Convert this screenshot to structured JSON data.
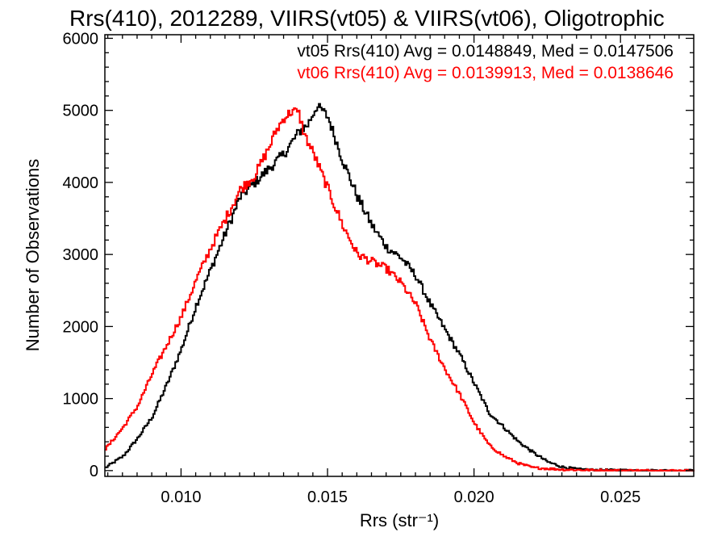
{
  "chart_data": {
    "type": "line",
    "step": true,
    "title": "Rrs(410), 2012289, VIIRS(vt05) & VIIRS(vt06), Oligotrophic",
    "xlabel": "Rrs (str⁻¹)",
    "ylabel": "Number of Observations",
    "xlim": [
      0.0074,
      0.0275
    ],
    "ylim": [
      -80,
      6050
    ],
    "x_ticks": [
      {
        "value": 0.01,
        "label": "0.010"
      },
      {
        "value": 0.015,
        "label": "0.015"
      },
      {
        "value": 0.02,
        "label": "0.020"
      },
      {
        "value": 0.025,
        "label": "0.025"
      }
    ],
    "y_ticks": [
      {
        "value": 0,
        "label": "0"
      },
      {
        "value": 1000,
        "label": "1000"
      },
      {
        "value": 2000,
        "label": "2000"
      },
      {
        "value": 3000,
        "label": "3000"
      },
      {
        "value": 4000,
        "label": "4000"
      },
      {
        "value": 5000,
        "label": "5000"
      },
      {
        "value": 6000,
        "label": "6000"
      }
    ],
    "grid": false,
    "legend_position": "top-right",
    "series": [
      {
        "name": "vt05 Rrs(410) Avg = 0.0148849, Med = 0.0147506",
        "color": "#000000",
        "x": [
          0.0074,
          0.008,
          0.0085,
          0.009,
          0.0095,
          0.01,
          0.0105,
          0.011,
          0.0115,
          0.012,
          0.0125,
          0.013,
          0.0135,
          0.014,
          0.0143,
          0.0146,
          0.0148,
          0.015,
          0.0155,
          0.016,
          0.0165,
          0.017,
          0.0175,
          0.018,
          0.0185,
          0.019,
          0.0195,
          0.02,
          0.0205,
          0.021,
          0.0215,
          0.022,
          0.0225,
          0.023,
          0.0235,
          0.024,
          0.025,
          0.026,
          0.0275
        ],
        "y": [
          40,
          200,
          450,
          750,
          1200,
          1700,
          2300,
          2800,
          3300,
          3800,
          4000,
          4200,
          4400,
          4700,
          4800,
          5050,
          5000,
          4900,
          4300,
          3800,
          3400,
          3100,
          2950,
          2700,
          2300,
          1950,
          1600,
          1200,
          800,
          600,
          400,
          250,
          120,
          50,
          20,
          10,
          5,
          2,
          0
        ]
      },
      {
        "name": "vt06 Rrs(410) Avg = 0.0139913, Med = 0.0138646",
        "color": "#ff0000",
        "x": [
          0.0074,
          0.008,
          0.0085,
          0.009,
          0.0095,
          0.01,
          0.0105,
          0.011,
          0.0115,
          0.012,
          0.0125,
          0.013,
          0.0132,
          0.0135,
          0.0138,
          0.014,
          0.0142,
          0.0145,
          0.015,
          0.0155,
          0.016,
          0.0165,
          0.017,
          0.0175,
          0.018,
          0.0185,
          0.019,
          0.0195,
          0.02,
          0.0205,
          0.021,
          0.0215,
          0.022,
          0.023,
          0.024,
          0.025,
          0.0275
        ],
        "y": [
          300,
          600,
          900,
          1350,
          1750,
          2150,
          2650,
          3100,
          3500,
          3900,
          4100,
          4500,
          4700,
          4900,
          5000,
          4950,
          4650,
          4400,
          3900,
          3400,
          3000,
          2900,
          2800,
          2600,
          2300,
          1800,
          1400,
          1050,
          650,
          350,
          200,
          100,
          40,
          15,
          5,
          2,
          0
        ]
      }
    ]
  }
}
